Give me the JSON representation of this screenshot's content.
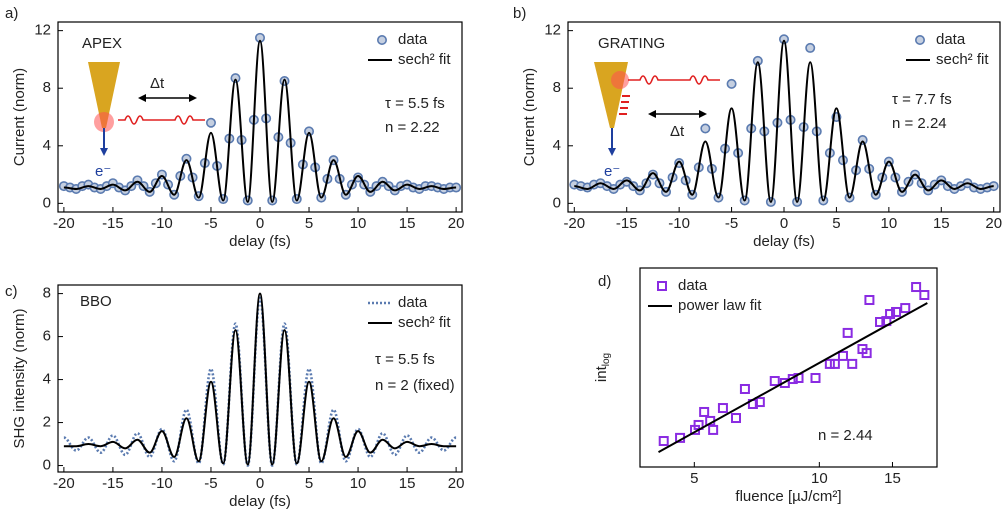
{
  "chart_data": [
    {
      "type": "line",
      "label": "a)",
      "x_label": "delay (fs)",
      "y_label": "Current (norm)",
      "xlim": [
        -20.6,
        20.6
      ],
      "ylim": [
        -0.6,
        12.6
      ],
      "xticks": [
        -20,
        -15,
        -10,
        -5,
        0,
        5,
        10,
        15,
        20
      ],
      "yticks": [
        0,
        4,
        8,
        12
      ],
      "legend": "upper right",
      "annotations": [
        "APEX",
        "Δt",
        "e⁻",
        "τ = 5.5 fs",
        "n = 2.22"
      ],
      "series": [
        {
          "name": "data",
          "type": "scatter",
          "marker": "circle",
          "color": "#5b7bb0",
          "x": [
            -20,
            -19.375,
            -18.75,
            -18.125,
            -17.5,
            -16.875,
            -16.25,
            -15.625,
            -15,
            -14.375,
            -13.75,
            -13.125,
            -12.5,
            -11.875,
            -11.25,
            -10.625,
            -10,
            -9.375,
            -8.75,
            -8.125,
            -7.5,
            -6.875,
            -6.25,
            -5.625,
            -5,
            -4.375,
            -3.75,
            -3.125,
            -2.5,
            -1.875,
            -1.25,
            -0.625,
            0,
            0.625,
            1.25,
            1.875,
            2.5,
            3.125,
            3.75,
            4.375,
            5,
            5.625,
            6.25,
            6.875,
            7.5,
            8.125,
            8.75,
            9.375,
            10,
            10.625,
            11.25,
            11.875,
            12.5,
            13.125,
            13.75,
            14.375,
            15,
            15.625,
            16.25,
            16.875,
            17.5,
            18.125,
            18.75,
            19.375,
            20
          ],
          "values": [
            1.2,
            1.1,
            1.0,
            1.2,
            1.3,
            1.1,
            1.0,
            1.2,
            1.4,
            1.1,
            0.9,
            1.2,
            1.6,
            1.2,
            0.8,
            1.4,
            2.0,
            1.3,
            0.6,
            1.9,
            3.1,
            1.8,
            0.5,
            2.8,
            5.6,
            2.6,
            0.3,
            4.5,
            8.7,
            4.4,
            0.2,
            5.8,
            11.5,
            5.9,
            0.2,
            4.6,
            8.5,
            4.2,
            0.3,
            2.7,
            5.0,
            2.5,
            0.4,
            1.7,
            3.0,
            1.7,
            0.6,
            1.3,
            1.8,
            1.3,
            0.8,
            1.2,
            1.5,
            1.2,
            0.9,
            1.2,
            1.3,
            1.1,
            1.0,
            1.2,
            1.2,
            1.1,
            1.0,
            1.1,
            1.1
          ]
        },
        {
          "name": "sech² fit",
          "type": "line",
          "color": "#000000",
          "x": [
            -20,
            -18.75,
            -17.5,
            -16.25,
            -15,
            -13.75,
            -12.5,
            -11.25,
            -10,
            -8.75,
            -7.5,
            -6.25,
            -5,
            -3.75,
            -2.5,
            -1.25,
            0,
            1.25,
            2.5,
            3.75,
            5,
            6.25,
            7.5,
            8.75,
            10,
            11.25,
            12.5,
            13.75,
            15,
            16.25,
            17.5,
            18.75,
            20
          ],
          "values": [
            1.1,
            1.0,
            1.2,
            1.0,
            1.3,
            0.9,
            1.5,
            0.8,
            1.9,
            0.6,
            3.0,
            0.4,
            4.9,
            0.2,
            8.6,
            0.1,
            11.3,
            0.1,
            8.6,
            0.2,
            4.9,
            0.4,
            3.0,
            0.6,
            1.9,
            0.8,
            1.5,
            0.9,
            1.3,
            1.0,
            1.2,
            1.0,
            1.1
          ]
        }
      ]
    },
    {
      "type": "line",
      "label": "b)",
      "x_label": "delay (fs)",
      "y_label": "Current (norm)",
      "xlim": [
        -20.6,
        20.6
      ],
      "ylim": [
        -0.6,
        12.6
      ],
      "xticks": [
        -20,
        -15,
        -10,
        -5,
        0,
        5,
        10,
        15,
        20
      ],
      "yticks": [
        0,
        4,
        8,
        12
      ],
      "legend": "upper right",
      "annotations": [
        "GRATING",
        "Δt",
        "e⁻",
        "τ = 7.7 fs",
        "n = 2.24"
      ],
      "series": [
        {
          "name": "data",
          "type": "scatter",
          "marker": "circle",
          "color": "#5b7bb0",
          "x": [
            -20,
            -19.375,
            -18.75,
            -18.125,
            -17.5,
            -16.875,
            -16.25,
            -15.625,
            -15,
            -14.375,
            -13.75,
            -13.125,
            -12.5,
            -11.875,
            -11.25,
            -10.625,
            -10,
            -9.375,
            -8.75,
            -8.125,
            -7.5,
            -6.875,
            -6.25,
            -5.625,
            -5,
            -4.375,
            -3.75,
            -3.125,
            -2.5,
            -1.875,
            -1.25,
            -0.625,
            0,
            0.625,
            1.25,
            1.875,
            2.5,
            3.125,
            3.75,
            4.375,
            5,
            5.625,
            6.25,
            6.875,
            7.5,
            8.125,
            8.75,
            9.375,
            10,
            10.625,
            11.25,
            11.875,
            12.5,
            13.125,
            13.75,
            14.375,
            15,
            15.625,
            16.25,
            16.875,
            17.5,
            18.125,
            18.75,
            19.375,
            20
          ],
          "values": [
            1.3,
            1.2,
            1.1,
            1.3,
            1.4,
            1.2,
            1.0,
            1.3,
            1.5,
            1.2,
            0.9,
            1.4,
            2.0,
            1.4,
            0.8,
            1.8,
            2.8,
            1.6,
            0.6,
            2.5,
            5.2,
            2.4,
            0.4,
            3.8,
            8.3,
            3.5,
            0.2,
            5.2,
            9.9,
            5.0,
            0.1,
            5.6,
            11.4,
            5.8,
            0.1,
            5.3,
            10.8,
            5.0,
            0.2,
            3.5,
            6.0,
            3.0,
            0.4,
            2.3,
            4.4,
            2.4,
            0.6,
            1.8,
            2.9,
            1.8,
            0.8,
            1.5,
            2.0,
            1.4,
            0.9,
            1.3,
            1.6,
            1.2,
            1.0,
            1.2,
            1.4,
            1.1,
            1.0,
            1.1,
            1.2
          ]
        },
        {
          "name": "sech² fit",
          "type": "line",
          "color": "#000000",
          "x": [
            -20,
            -18.75,
            -17.5,
            -16.25,
            -15,
            -13.75,
            -12.5,
            -11.25,
            -10,
            -8.75,
            -7.5,
            -6.25,
            -5,
            -3.75,
            -2.5,
            -1.25,
            0,
            1.25,
            2.5,
            3.75,
            5,
            6.25,
            7.5,
            8.75,
            10,
            11.25,
            12.5,
            13.75,
            15,
            16.25,
            17.5,
            18.75,
            20
          ],
          "values": [
            1.2,
            1.0,
            1.4,
            1.0,
            1.6,
            0.9,
            2.1,
            0.8,
            2.9,
            0.6,
            4.3,
            0.4,
            6.6,
            0.2,
            9.8,
            0.1,
            11.3,
            0.1,
            9.8,
            0.2,
            6.6,
            0.4,
            4.3,
            0.6,
            2.9,
            0.8,
            2.0,
            0.9,
            1.6,
            1.0,
            1.4,
            1.0,
            1.2
          ]
        }
      ]
    },
    {
      "type": "line",
      "label": "c)",
      "x_label": "delay (fs)",
      "y_label": "SHG intensity (norm)",
      "xlim": [
        -20.6,
        20.6
      ],
      "ylim": [
        -0.3,
        8.4
      ],
      "xticks": [
        -20,
        -15,
        -10,
        -5,
        0,
        5,
        10,
        15,
        20
      ],
      "yticks": [
        0,
        2,
        4,
        6,
        8
      ],
      "legend": "upper right",
      "annotations": [
        "BBO",
        "τ = 5.5 fs",
        "n = 2 (fixed)"
      ],
      "series": [
        {
          "name": "data",
          "type": "line",
          "dash": "dotted",
          "color": "#5b7bb0",
          "x": [
            -20,
            -18.75,
            -17.5,
            -16.25,
            -15,
            -13.75,
            -12.5,
            -11.25,
            -10,
            -8.75,
            -7.5,
            -6.25,
            -5,
            -3.75,
            -2.5,
            -1.25,
            0,
            1.25,
            2.5,
            3.75,
            5,
            6.25,
            7.5,
            8.75,
            10,
            11.25,
            12.5,
            13.75,
            15,
            16.25,
            17.5,
            18.75,
            20
          ],
          "values": [
            1.3,
            0.7,
            1.3,
            0.6,
            1.4,
            0.5,
            1.5,
            0.4,
            1.7,
            0.2,
            2.6,
            0.1,
            4.5,
            0.05,
            6.6,
            0.0,
            7.8,
            0.0,
            6.6,
            0.05,
            4.5,
            0.1,
            2.6,
            0.2,
            1.7,
            0.4,
            1.5,
            0.5,
            1.4,
            0.6,
            1.3,
            0.7,
            1.3
          ]
        },
        {
          "name": "sech² fit",
          "type": "line",
          "color": "#000000",
          "x": [
            -20,
            -18.75,
            -17.5,
            -16.25,
            -15,
            -13.75,
            -12.5,
            -11.25,
            -10,
            -8.75,
            -7.5,
            -6.25,
            -5,
            -3.75,
            -2.5,
            -1.25,
            0,
            1.25,
            2.5,
            3.75,
            5,
            6.25,
            7.5,
            8.75,
            10,
            11.25,
            12.5,
            13.75,
            15,
            16.25,
            17.5,
            18.75,
            20
          ],
          "values": [
            0.9,
            0.9,
            1.0,
            0.9,
            1.1,
            0.8,
            1.2,
            0.6,
            1.6,
            0.4,
            2.2,
            0.2,
            3.9,
            0.1,
            6.3,
            0.05,
            8.0,
            0.05,
            6.3,
            0.1,
            3.9,
            0.2,
            2.2,
            0.4,
            1.6,
            0.6,
            1.2,
            0.8,
            1.1,
            0.9,
            1.0,
            0.9,
            0.9
          ]
        }
      ]
    },
    {
      "type": "scatter",
      "label": "d)",
      "x_label": "fluence [µJ/cm²]",
      "y_label": "int",
      "y_label_sub": "log",
      "xscale": "log",
      "yscale": "log",
      "xlim": [
        3.7,
        19.2
      ],
      "ylim": [
        1,
        131
      ],
      "xticks": [
        5,
        10,
        15
      ],
      "legend": "upper left",
      "annotations": [
        "n = 2.44"
      ],
      "series": [
        {
          "name": "data",
          "type": "scatter",
          "marker": "square",
          "color": "#8a2be2",
          "x": [
            4.22,
            4.62,
            5.02,
            5.12,
            5.28,
            5.55,
            5.46,
            5.86,
            6.3,
            6.62,
            6.92,
            7.19,
            7.81,
            8.26,
            8.63,
            8.91,
            9.79,
            10.6,
            10.9,
            11.4,
            11.7,
            12.0,
            12.7,
            13.0,
            13.2,
            14.0,
            14.5,
            14.8,
            15.3,
            16.1,
            17.1,
            17.9
          ],
          "values": [
            1.89,
            2.04,
            2.48,
            2.8,
            3.85,
            2.48,
            3.09,
            4.24,
            3.32,
            6.76,
            4.68,
            4.91,
            8.22,
            7.83,
            8.63,
            8.85,
            8.85,
            12.5,
            12.5,
            15.2,
            26.7,
            12.5,
            18.0,
            16.3,
            59.8,
            34.9,
            35.7,
            42.4,
            44.6,
            49.1,
            82.2,
            67.6
          ]
        },
        {
          "name": "power law fit",
          "type": "line",
          "color": "#000000",
          "x": [
            4.1,
            18.2
          ],
          "values": [
            1.44,
            55.6
          ]
        }
      ]
    }
  ]
}
